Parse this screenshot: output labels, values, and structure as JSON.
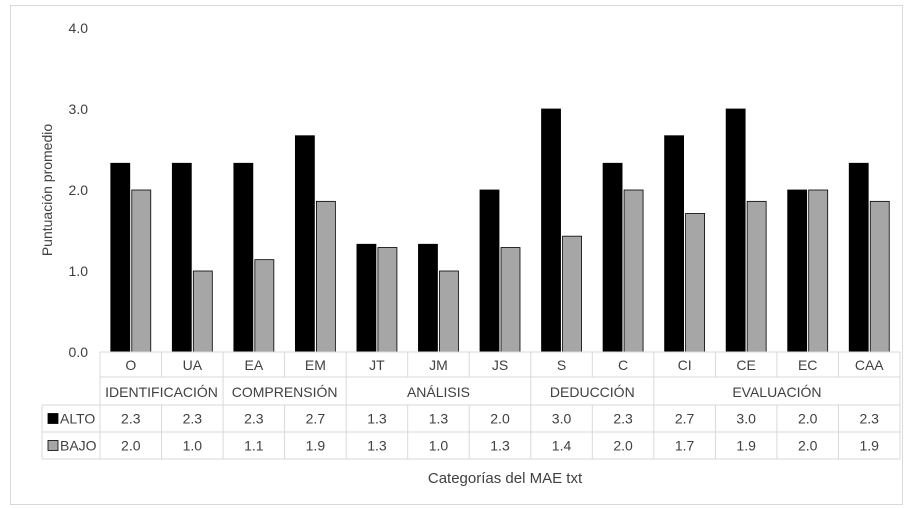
{
  "chart_data": {
    "type": "bar",
    "ylabel": "Puntuación promedio",
    "xlabel": "Categorías del MAE txt",
    "ylim": [
      0,
      4
    ],
    "yticks": [
      "0.0",
      "1.0",
      "2.0",
      "3.0",
      "4.0"
    ],
    "categories": [
      "O",
      "UA",
      "EA",
      "EM",
      "JT",
      "JM",
      "JS",
      "S",
      "C",
      "CI",
      "CE",
      "EC",
      "CAA"
    ],
    "groups": [
      {
        "label": "IDENTIFICACIÓN",
        "categories": [
          "O",
          "UA"
        ]
      },
      {
        "label": "COMPRENSIÓN",
        "categories": [
          "EA",
          "EM"
        ]
      },
      {
        "label": "ANÁLISIS",
        "categories": [
          "JT",
          "JM",
          "JS"
        ]
      },
      {
        "label": "DEDUCCIÓN",
        "categories": [
          "S",
          "C"
        ]
      },
      {
        "label": "EVALUACIÓN",
        "categories": [
          "CI",
          "CE",
          "EC",
          "CAA"
        ]
      }
    ],
    "series": [
      {
        "name": "ALTO",
        "color": "#000000",
        "values": [
          2.33,
          2.33,
          2.33,
          2.67,
          1.33,
          1.33,
          2.0,
          3.0,
          2.33,
          2.67,
          3.0,
          2.0,
          2.33
        ],
        "labels": [
          "2.3",
          "2.3",
          "2.3",
          "2.7",
          "1.3",
          "1.3",
          "2.0",
          "3.0",
          "2.3",
          "2.7",
          "3.0",
          "2.0",
          "2.3"
        ]
      },
      {
        "name": "BAJO",
        "color": "#a6a6a6",
        "values": [
          2.0,
          1.0,
          1.14,
          1.86,
          1.29,
          1.0,
          1.29,
          1.43,
          2.0,
          1.71,
          1.86,
          2.0,
          1.86
        ],
        "labels": [
          "2.0",
          "1.0",
          "1.1",
          "1.9",
          "1.3",
          "1.0",
          "1.3",
          "1.4",
          "2.0",
          "1.7",
          "1.9",
          "2.0",
          "1.9"
        ]
      }
    ],
    "grid": false,
    "legend": "data-table"
  }
}
